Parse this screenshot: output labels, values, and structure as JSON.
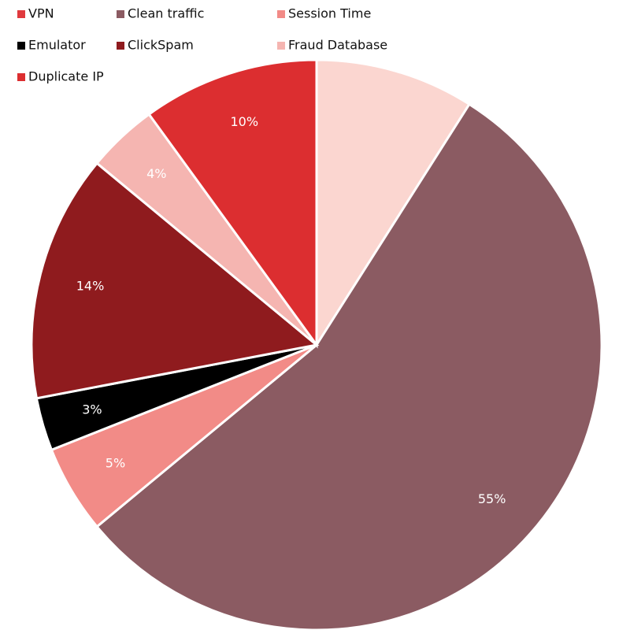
{
  "chart_data": {
    "type": "pie",
    "categories": [
      "VPN",
      "Clean traffic",
      "Session Time",
      "Emulator",
      "ClickSpam",
      "Fraud Database",
      "Duplicate IP"
    ],
    "values": [
      9,
      55,
      5,
      3,
      14,
      4,
      10
    ],
    "value_labels": [
      null,
      "55%",
      "5%",
      "3%",
      "14%",
      "4%",
      "10%"
    ],
    "colors": [
      "#fbd6d0",
      "#8b5b62",
      "#f28b87",
      "#000000",
      "#8f1b1e",
      "#f5b5b1",
      "#dc2e30"
    ],
    "legend_colors": [
      "#e03a3e",
      "#8b5b62",
      "#f28b87",
      "#000000",
      "#8f1b1e",
      "#f5b5b1",
      "#dc2e30"
    ],
    "legend": "top-left"
  }
}
